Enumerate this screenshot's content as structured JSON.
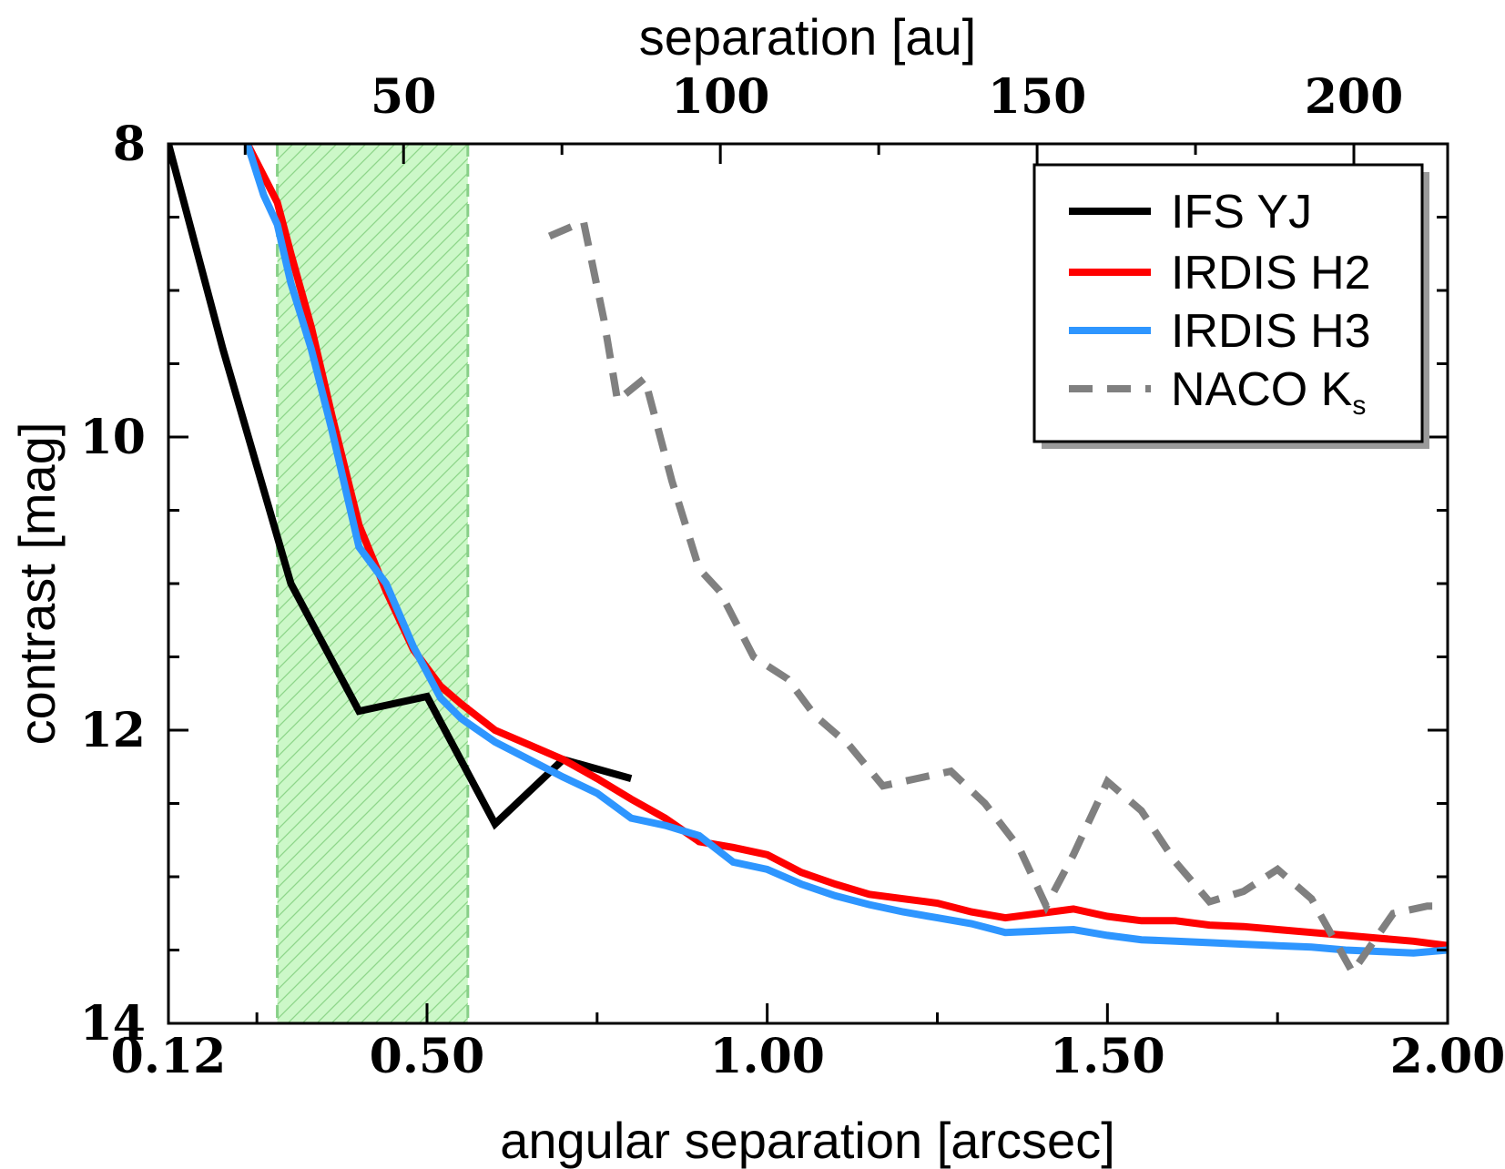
{
  "chart_data": {
    "type": "line",
    "xlabel": "angular separation [arcsec]",
    "ylabel": "contrast [mag]",
    "x2label": "separation [au]",
    "xlim": [
      0.12,
      2.0
    ],
    "ylim": [
      8,
      14
    ],
    "y_inverted": true,
    "xticks": [
      {
        "value": 0.12,
        "label": "0.12"
      },
      {
        "value": 0.5,
        "label": "0.50"
      },
      {
        "value": 1.0,
        "label": "1.00"
      },
      {
        "value": 1.5,
        "label": "1.50"
      },
      {
        "value": 2.0,
        "label": "2.00"
      }
    ],
    "yticks": [
      {
        "value": 8,
        "label": "8"
      },
      {
        "value": 10,
        "label": "10"
      },
      {
        "value": 12,
        "label": "12"
      },
      {
        "value": 14,
        "label": "14"
      }
    ],
    "x2_scale_au_per_arcsec": 107.4,
    "x2ticks": [
      {
        "value": 50,
        "label": "50"
      },
      {
        "value": 100,
        "label": "100"
      },
      {
        "value": 150,
        "label": "150"
      },
      {
        "value": 200,
        "label": "200"
      }
    ],
    "shaded_region": {
      "x": [
        0.28,
        0.56
      ],
      "fill": "#ccf8c8",
      "hatch": "#8ed68a",
      "edge": "#88d088"
    },
    "legend": {
      "position": "top-right",
      "sub_ks": "s"
    },
    "series": [
      {
        "name": "IFS YJ",
        "legend_main": "IFS YJ",
        "color": "#000000",
        "dash": false,
        "x": [
          0.12,
          0.2,
          0.3,
          0.4,
          0.5,
          0.6,
          0.7,
          0.8
        ],
        "y": [
          8.0,
          9.4,
          11.0,
          11.87,
          11.77,
          12.64,
          12.2,
          12.33
        ]
      },
      {
        "name": "IRDIS H2",
        "legend_main": "IRDIS H2",
        "color": "#ff0000",
        "dash": false,
        "x": [
          0.236,
          0.28,
          0.3,
          0.33,
          0.36,
          0.4,
          0.44,
          0.48,
          0.52,
          0.55,
          0.6,
          0.65,
          0.7,
          0.75,
          0.8,
          0.85,
          0.9,
          0.95,
          1.0,
          1.05,
          1.1,
          1.15,
          1.2,
          1.25,
          1.3,
          1.35,
          1.4,
          1.45,
          1.5,
          1.55,
          1.6,
          1.65,
          1.7,
          1.75,
          1.8,
          1.85,
          1.9,
          1.95,
          2.0
        ],
        "y": [
          8.0,
          8.4,
          8.75,
          9.25,
          9.85,
          10.6,
          11.05,
          11.45,
          11.7,
          11.82,
          12.0,
          12.1,
          12.2,
          12.33,
          12.47,
          12.6,
          12.76,
          12.8,
          12.85,
          12.97,
          13.05,
          13.12,
          13.15,
          13.18,
          13.24,
          13.28,
          13.25,
          13.22,
          13.27,
          13.3,
          13.3,
          13.33,
          13.34,
          13.36,
          13.38,
          13.4,
          13.42,
          13.44,
          13.47
        ]
      },
      {
        "name": "IRDIS H3",
        "legend_main": "IRDIS H3",
        "color": "#2e96ff",
        "dash": false,
        "x": [
          0.236,
          0.26,
          0.28,
          0.3,
          0.33,
          0.36,
          0.4,
          0.44,
          0.48,
          0.52,
          0.55,
          0.6,
          0.65,
          0.7,
          0.75,
          0.8,
          0.85,
          0.9,
          0.95,
          1.0,
          1.05,
          1.1,
          1.15,
          1.2,
          1.25,
          1.3,
          1.35,
          1.4,
          1.45,
          1.5,
          1.55,
          1.6,
          1.65,
          1.7,
          1.75,
          1.8,
          1.85,
          1.9,
          1.95,
          2.0
        ],
        "y": [
          8.0,
          8.35,
          8.55,
          8.95,
          9.4,
          9.95,
          10.75,
          11.0,
          11.43,
          11.78,
          11.92,
          12.08,
          12.2,
          12.32,
          12.43,
          12.6,
          12.65,
          12.72,
          12.9,
          12.95,
          13.05,
          13.13,
          13.19,
          13.24,
          13.28,
          13.32,
          13.38,
          13.37,
          13.36,
          13.4,
          13.43,
          13.44,
          13.45,
          13.46,
          13.47,
          13.48,
          13.5,
          13.51,
          13.52,
          13.5
        ]
      },
      {
        "name": "NACO Ks",
        "legend_main": "NACO K",
        "color": "#808080",
        "dash": true,
        "x": [
          0.68,
          0.73,
          0.76,
          0.78,
          0.82,
          0.86,
          0.9,
          0.93,
          0.98,
          1.03,
          1.07,
          1.12,
          1.17,
          1.22,
          1.27,
          1.32,
          1.37,
          1.41,
          1.45,
          1.5,
          1.55,
          1.6,
          1.65,
          1.7,
          1.75,
          1.8,
          1.86,
          1.92,
          1.97,
          2.0
        ],
        "y": [
          8.63,
          8.53,
          9.2,
          9.75,
          9.6,
          10.3,
          10.9,
          11.05,
          11.5,
          11.65,
          11.9,
          12.1,
          12.38,
          12.33,
          12.28,
          12.5,
          12.8,
          13.2,
          12.85,
          12.35,
          12.55,
          12.9,
          13.17,
          13.1,
          12.95,
          13.15,
          13.65,
          13.25,
          13.2,
          13.2
        ]
      }
    ]
  }
}
